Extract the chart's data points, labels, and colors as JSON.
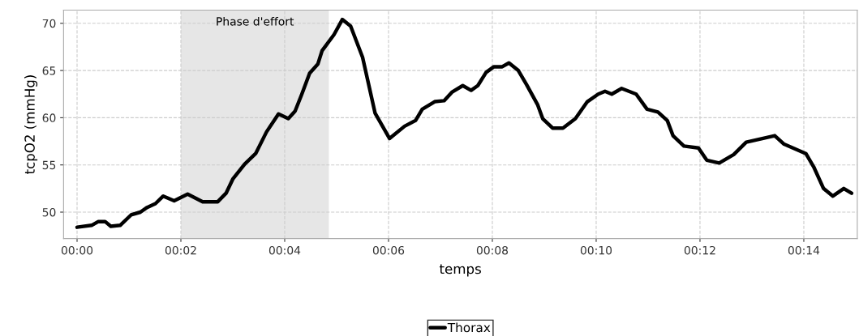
{
  "chart_data": {
    "type": "line",
    "xlabel": "temps",
    "ylabel": "tcpO2 (mmHg)",
    "xlim": [
      -0.26,
      15.03
    ],
    "ylim": [
      47.2,
      71.4
    ],
    "xticks": [
      {
        "value": 0,
        "label": "00:00"
      },
      {
        "value": 2,
        "label": "00:02"
      },
      {
        "value": 4,
        "label": "00:04"
      },
      {
        "value": 6,
        "label": "00:06"
      },
      {
        "value": 8,
        "label": "00:08"
      },
      {
        "value": 10,
        "label": "00:10"
      },
      {
        "value": 12,
        "label": "00:12"
      },
      {
        "value": 14,
        "label": "00:14"
      }
    ],
    "yticks": [
      50,
      55,
      60,
      65,
      70
    ],
    "grid": true,
    "legend": "bottom",
    "line_style": "solid",
    "marker": "none",
    "bands": [
      {
        "axis": "x",
        "from": 2,
        "to": 4.85,
        "label": "Phase d'effort",
        "color": "#e6e6e6"
      }
    ],
    "series": [
      {
        "name": "Thorax",
        "color": "#000000",
        "x": [
          0,
          0.28,
          0.41,
          0.54,
          0.65,
          0.83,
          1.04,
          1.22,
          1.35,
          1.51,
          1.66,
          1.87,
          2.13,
          2.42,
          2.71,
          2.87,
          3.0,
          3.23,
          3.44,
          3.65,
          3.88,
          4.07,
          4.2,
          4.33,
          4.48,
          4.64,
          4.72,
          4.95,
          5.11,
          5.27,
          5.5,
          5.74,
          6.02,
          6.31,
          6.52,
          6.65,
          6.89,
          7.07,
          7.22,
          7.43,
          7.59,
          7.72,
          7.88,
          8.03,
          8.19,
          8.32,
          8.5,
          8.66,
          8.87,
          8.97,
          9.16,
          9.36,
          9.6,
          9.83,
          10.04,
          10.17,
          10.3,
          10.49,
          10.77,
          10.98,
          11.19,
          11.37,
          11.48,
          11.69,
          11.97,
          12.13,
          12.37,
          12.65,
          12.89,
          13.2,
          13.44,
          13.62,
          14.04,
          14.19,
          14.38,
          14.56,
          14.77,
          14.92
        ],
        "values": [
          48.4,
          48.6,
          49.0,
          49.0,
          48.5,
          48.6,
          49.7,
          50.0,
          50.5,
          50.9,
          51.7,
          51.2,
          51.9,
          51.1,
          51.1,
          52.0,
          53.5,
          55.1,
          56.2,
          58.5,
          60.4,
          59.9,
          60.7,
          62.5,
          64.7,
          65.7,
          67.1,
          68.8,
          70.4,
          69.7,
          66.4,
          60.5,
          57.8,
          59.1,
          59.7,
          60.9,
          61.7,
          61.8,
          62.7,
          63.4,
          62.9,
          63.4,
          64.8,
          65.4,
          65.4,
          65.8,
          65.0,
          63.5,
          61.4,
          59.9,
          58.9,
          58.9,
          59.9,
          61.7,
          62.5,
          62.8,
          62.5,
          63.1,
          62.5,
          60.9,
          60.6,
          59.7,
          58.1,
          57.0,
          56.8,
          55.5,
          55.2,
          56.1,
          57.4,
          57.8,
          58.1,
          57.2,
          56.2,
          54.8,
          52.5,
          51.7,
          52.5,
          52.0
        ]
      }
    ]
  }
}
